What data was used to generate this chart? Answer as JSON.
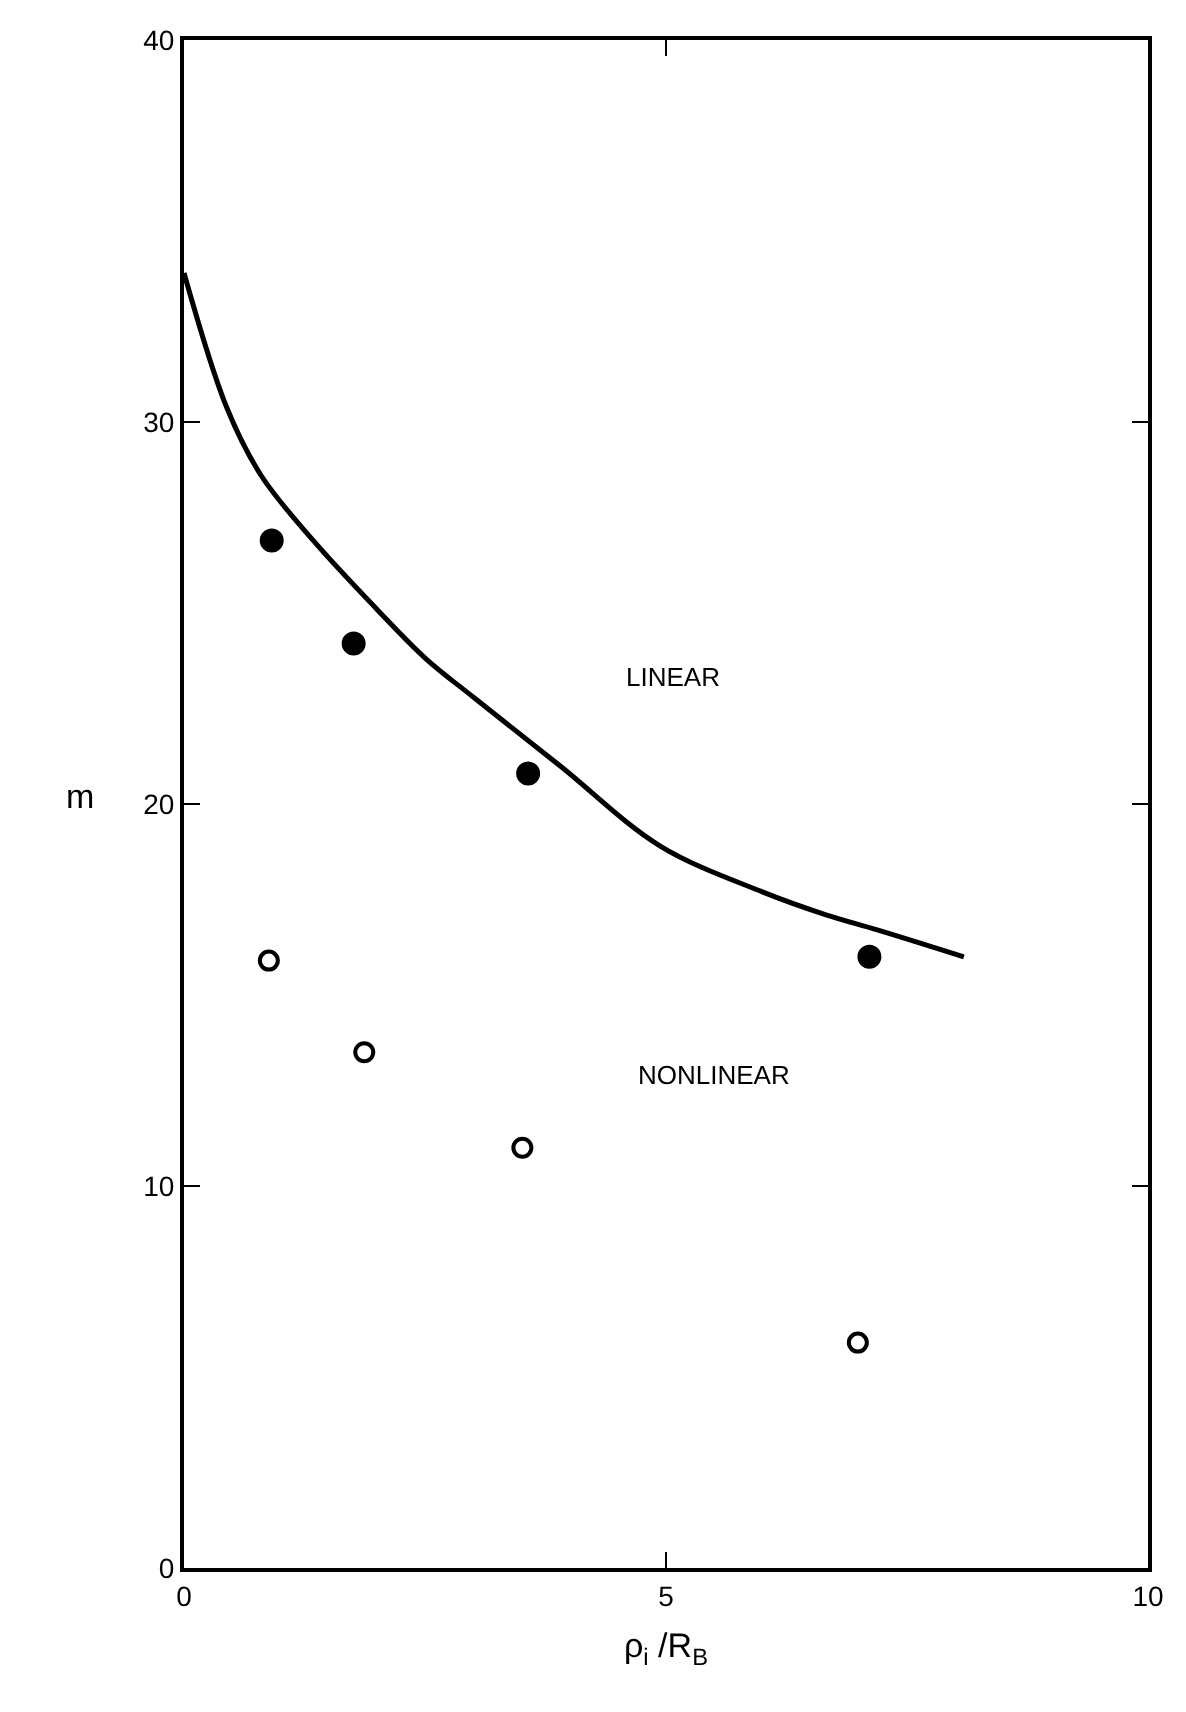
{
  "chart_data": {
    "type": "scatter",
    "xlabel": "ρ$_{i}$ /R$_{B}$",
    "ylabel": "m",
    "xlim": [
      0,
      10
    ],
    "xticks": [
      0,
      5,
      10
    ],
    "ylim": [
      0,
      40
    ],
    "yticks": [
      0,
      10,
      20,
      30,
      40
    ],
    "series": [
      {
        "type": "line",
        "color": "#000000",
        "marker": "none",
        "line_style": "solid",
        "x": [
          0,
          0.44,
          0.8,
          1.34,
          2.0,
          2.51,
          3.0,
          3.9,
          4.94,
          6.0,
          6.66,
          7.2,
          8.09
        ],
        "values": [
          33.9,
          30.4,
          28.6,
          26.9,
          25.1,
          23.8,
          22.8,
          21.0,
          18.9,
          17.7,
          17.1,
          16.7,
          16.0
        ]
      },
      {
        "color": "#000000",
        "marker": "circle",
        "x": [
          0.91,
          1.76,
          3.57,
          7.11
        ],
        "values": [
          26.9,
          24.2,
          20.8,
          16.0
        ]
      },
      {
        "color": "#000000",
        "marker": "circle-open",
        "x": [
          0.88,
          1.87,
          3.51,
          6.99
        ],
        "values": [
          15.9,
          13.5,
          11.0,
          5.9
        ]
      }
    ],
    "annotations": [
      "LINEAR",
      "NONLINEAR"
    ]
  }
}
